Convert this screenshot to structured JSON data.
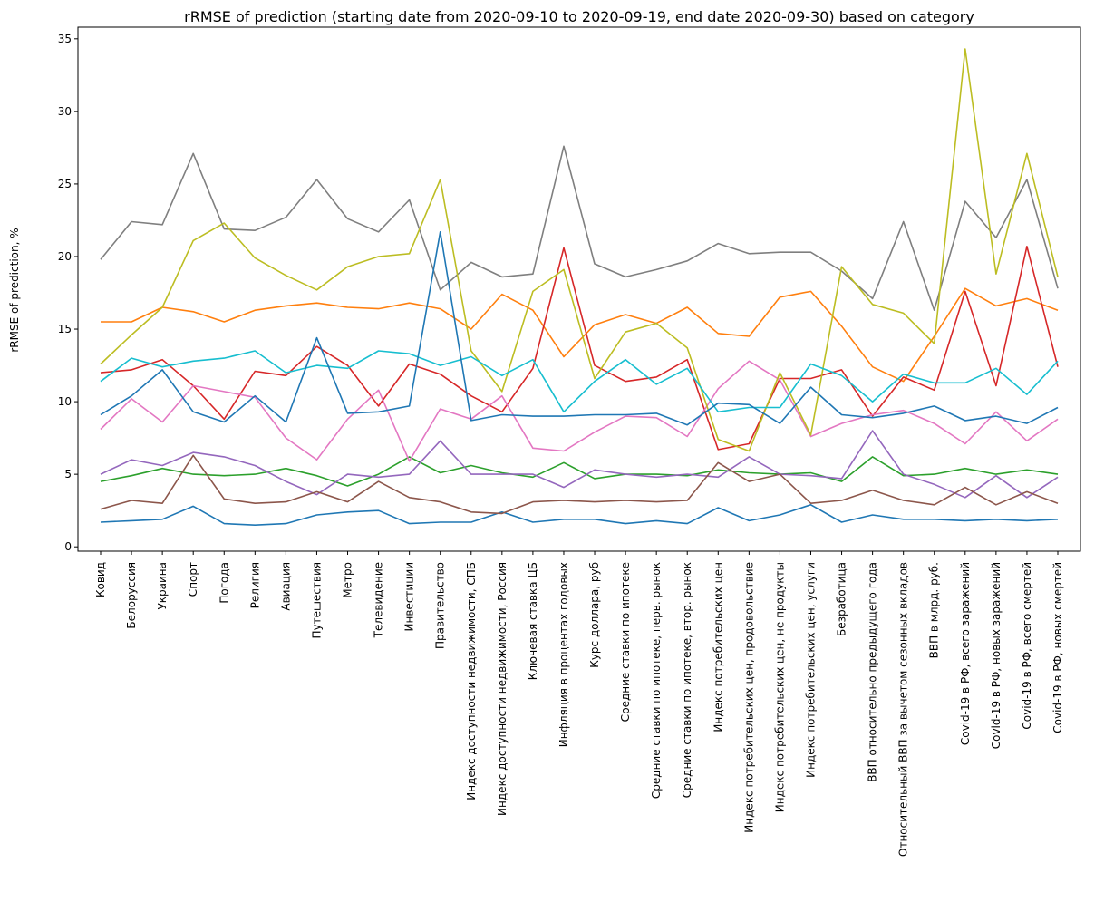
{
  "chart_data": {
    "type": "line",
    "title": "rRMSE of prediction (starting date from 2020-09-10 to 2020-09-19, end date 2020-09-30) based on category",
    "xlabel": "",
    "ylabel": "rRMSE of prediction, %",
    "ylim": [
      -0.3,
      35.8
    ],
    "yticks": [
      0,
      5,
      10,
      15,
      20,
      25,
      30,
      35
    ],
    "grid": false,
    "legend": "none",
    "categories": [
      "Ковид",
      "Белоруссия",
      "Украина",
      "Спорт",
      "Погода",
      "Религия",
      "Авиация",
      "Путешествия",
      "Метро",
      "Телевидение",
      "Инвестиции",
      "Правительство",
      "Индекс доступности недвижимости, СПБ",
      "Индекс доступности недвижимости, Россия",
      "Ключевая ставка ЦБ",
      "Инфляция в процентах годовых",
      "Курс доллара, руб",
      "Средние ставки по ипотеке",
      "Средние ставки по ипотеке, перв. рынок",
      "Средние ставки по ипотеке, втор. рынок",
      "Индекс потребительских цен",
      "Индекс потребительских цен, продовольствие",
      "Индекс потребительских цен, не продукты",
      "Индекс потребительских цен, услуги",
      "Безработица",
      "ВВП относительно предыдущего года",
      "Относительный ВВП за вычетом сезонных вкладов",
      "ВВП в млрд. руб.",
      "Covid-19 в РФ, всего заражений",
      "Covid-19 в РФ, новых заражений",
      "Covid-19 в РФ, всего смертей",
      "Covid-19 в РФ, новых смертей"
    ],
    "series": [
      {
        "color": "#1f77b4",
        "values": [
          1.7,
          1.8,
          1.9,
          2.8,
          1.6,
          1.5,
          1.6,
          2.2,
          2.4,
          2.5,
          1.6,
          1.7,
          1.7,
          2.4,
          1.7,
          1.9,
          1.9,
          1.6,
          1.8,
          1.6,
          2.7,
          1.8,
          2.2,
          2.9,
          1.7,
          2.2,
          1.9,
          1.9,
          1.8,
          1.9,
          1.8,
          1.9
        ]
      },
      {
        "color": "#ff7f0e",
        "values": [
          15.5,
          15.5,
          16.5,
          16.2,
          15.5,
          16.3,
          16.6,
          16.8,
          16.5,
          16.4,
          16.8,
          16.4,
          15.0,
          17.4,
          16.3,
          13.1,
          15.3,
          16.0,
          15.4,
          16.5,
          14.7,
          14.5,
          17.2,
          17.6,
          15.2,
          12.4,
          11.4,
          14.5,
          17.8,
          16.6,
          17.1,
          16.3
        ]
      },
      {
        "color": "#2ca02c",
        "values": [
          4.5,
          4.9,
          5.4,
          5.0,
          4.9,
          5.0,
          5.4,
          4.9,
          4.2,
          5.0,
          6.2,
          5.1,
          5.6,
          5.1,
          4.8,
          5.8,
          4.7,
          5.0,
          5.0,
          4.9,
          5.3,
          5.1,
          5.0,
          5.1,
          4.5,
          6.2,
          4.9,
          5.0,
          5.4,
          5.0,
          5.3,
          5.0
        ]
      },
      {
        "color": "#d62728",
        "values": [
          12.0,
          12.2,
          12.9,
          11.1,
          8.8,
          12.1,
          11.8,
          13.8,
          12.5,
          9.7,
          12.6,
          11.9,
          10.4,
          9.3,
          12.3,
          20.6,
          12.5,
          11.4,
          11.7,
          12.9,
          6.7,
          7.1,
          11.6,
          11.6,
          12.2,
          9.0,
          11.7,
          10.8,
          17.6,
          11.1,
          20.7,
          12.4
        ]
      },
      {
        "color": "#9467bd",
        "values": [
          5.0,
          6.0,
          5.6,
          6.5,
          6.2,
          5.6,
          4.5,
          3.6,
          5.0,
          4.8,
          5.0,
          7.3,
          5.0,
          5.0,
          5.0,
          4.1,
          5.3,
          5.0,
          4.8,
          5.0,
          4.8,
          6.2,
          5.0,
          4.9,
          4.7,
          8.0,
          5.0,
          4.3,
          3.4,
          4.9,
          3.4,
          4.8
        ]
      },
      {
        "color": "#8c564b",
        "values": [
          2.6,
          3.2,
          3.0,
          6.3,
          3.3,
          3.0,
          3.1,
          3.8,
          3.1,
          4.5,
          3.4,
          3.1,
          2.4,
          2.3,
          3.1,
          3.2,
          3.1,
          3.2,
          3.1,
          3.2,
          5.8,
          4.5,
          5.0,
          3.0,
          3.2,
          3.9,
          3.2,
          2.9,
          4.1,
          2.9,
          3.8,
          3.0
        ]
      },
      {
        "color": "#e377c2",
        "values": [
          8.1,
          10.2,
          8.6,
          11.1,
          10.7,
          10.3,
          7.5,
          6.0,
          8.8,
          10.8,
          5.9,
          9.5,
          8.8,
          10.4,
          6.8,
          6.6,
          7.9,
          9.0,
          8.9,
          7.6,
          10.9,
          12.8,
          11.5,
          7.6,
          8.5,
          9.1,
          9.4,
          8.5,
          7.1,
          9.3,
          7.3,
          8.8
        ]
      },
      {
        "color": "#7f7f7f",
        "values": [
          19.8,
          22.4,
          22.2,
          27.1,
          21.9,
          21.8,
          22.7,
          25.3,
          22.6,
          21.7,
          23.9,
          17.7,
          19.6,
          18.6,
          18.8,
          27.6,
          19.5,
          18.6,
          19.1,
          19.7,
          20.9,
          20.2,
          20.3,
          20.3,
          19.0,
          17.1,
          22.4,
          16.3,
          23.8,
          21.3,
          25.3,
          17.8
        ]
      },
      {
        "color": "#bcbd22",
        "values": [
          12.6,
          14.6,
          16.5,
          21.1,
          22.3,
          19.9,
          18.7,
          17.7,
          19.3,
          20.0,
          20.2,
          25.3,
          13.5,
          10.7,
          17.6,
          19.1,
          11.6,
          14.8,
          15.4,
          13.7,
          7.4,
          6.6,
          12.0,
          7.7,
          19.3,
          16.7,
          16.1,
          14.0,
          34.3,
          18.8,
          27.1,
          18.6
        ]
      },
      {
        "color": "#17becf",
        "values": [
          11.4,
          13.0,
          12.4,
          12.8,
          13.0,
          13.5,
          12.0,
          12.5,
          12.3,
          13.5,
          13.3,
          12.5,
          13.1,
          11.8,
          12.9,
          9.3,
          11.4,
          12.9,
          11.2,
          12.3,
          9.3,
          9.6,
          9.6,
          12.6,
          11.8,
          10.0,
          11.9,
          11.3,
          11.3,
          12.3,
          10.5,
          12.8
        ]
      },
      {
        "color": "#1f77b4",
        "values": [
          9.1,
          10.4,
          12.2,
          9.3,
          8.6,
          10.4,
          8.6,
          14.4,
          9.2,
          9.3,
          9.7,
          21.7,
          8.7,
          9.1,
          9.0,
          9.0,
          9.1,
          9.1,
          9.2,
          8.4,
          9.9,
          9.8,
          8.5,
          11.0,
          9.1,
          8.9,
          9.2,
          9.7,
          8.7,
          9.0,
          8.5,
          9.6
        ]
      }
    ]
  }
}
